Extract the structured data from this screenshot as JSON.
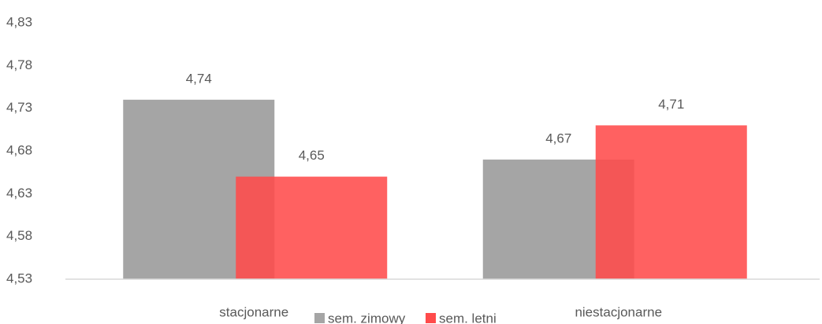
{
  "chart_data": {
    "type": "bar",
    "categories": [
      "stacjonarne",
      "niestacjonarne"
    ],
    "series": [
      {
        "name": "sem. zimowy",
        "color": "#a5a5a5",
        "values": [
          4.74,
          4.67
        ],
        "value_labels": [
          "4,74",
          "4,67"
        ]
      },
      {
        "name": "sem. letni",
        "color": "#ff4b4b",
        "values": [
          4.65,
          4.71
        ],
        "value_labels": [
          "4,65",
          "4,71"
        ]
      }
    ],
    "ylim": [
      4.53,
      4.83
    ],
    "yticks": [
      {
        "value": 4.53,
        "label": "4,53"
      },
      {
        "value": 4.58,
        "label": "4,58"
      },
      {
        "value": 4.63,
        "label": "4,63"
      },
      {
        "value": 4.68,
        "label": "4,68"
      },
      {
        "value": 4.73,
        "label": "4,73"
      },
      {
        "value": 4.78,
        "label": "4,78"
      },
      {
        "value": 4.83,
        "label": "4,83"
      }
    ]
  }
}
